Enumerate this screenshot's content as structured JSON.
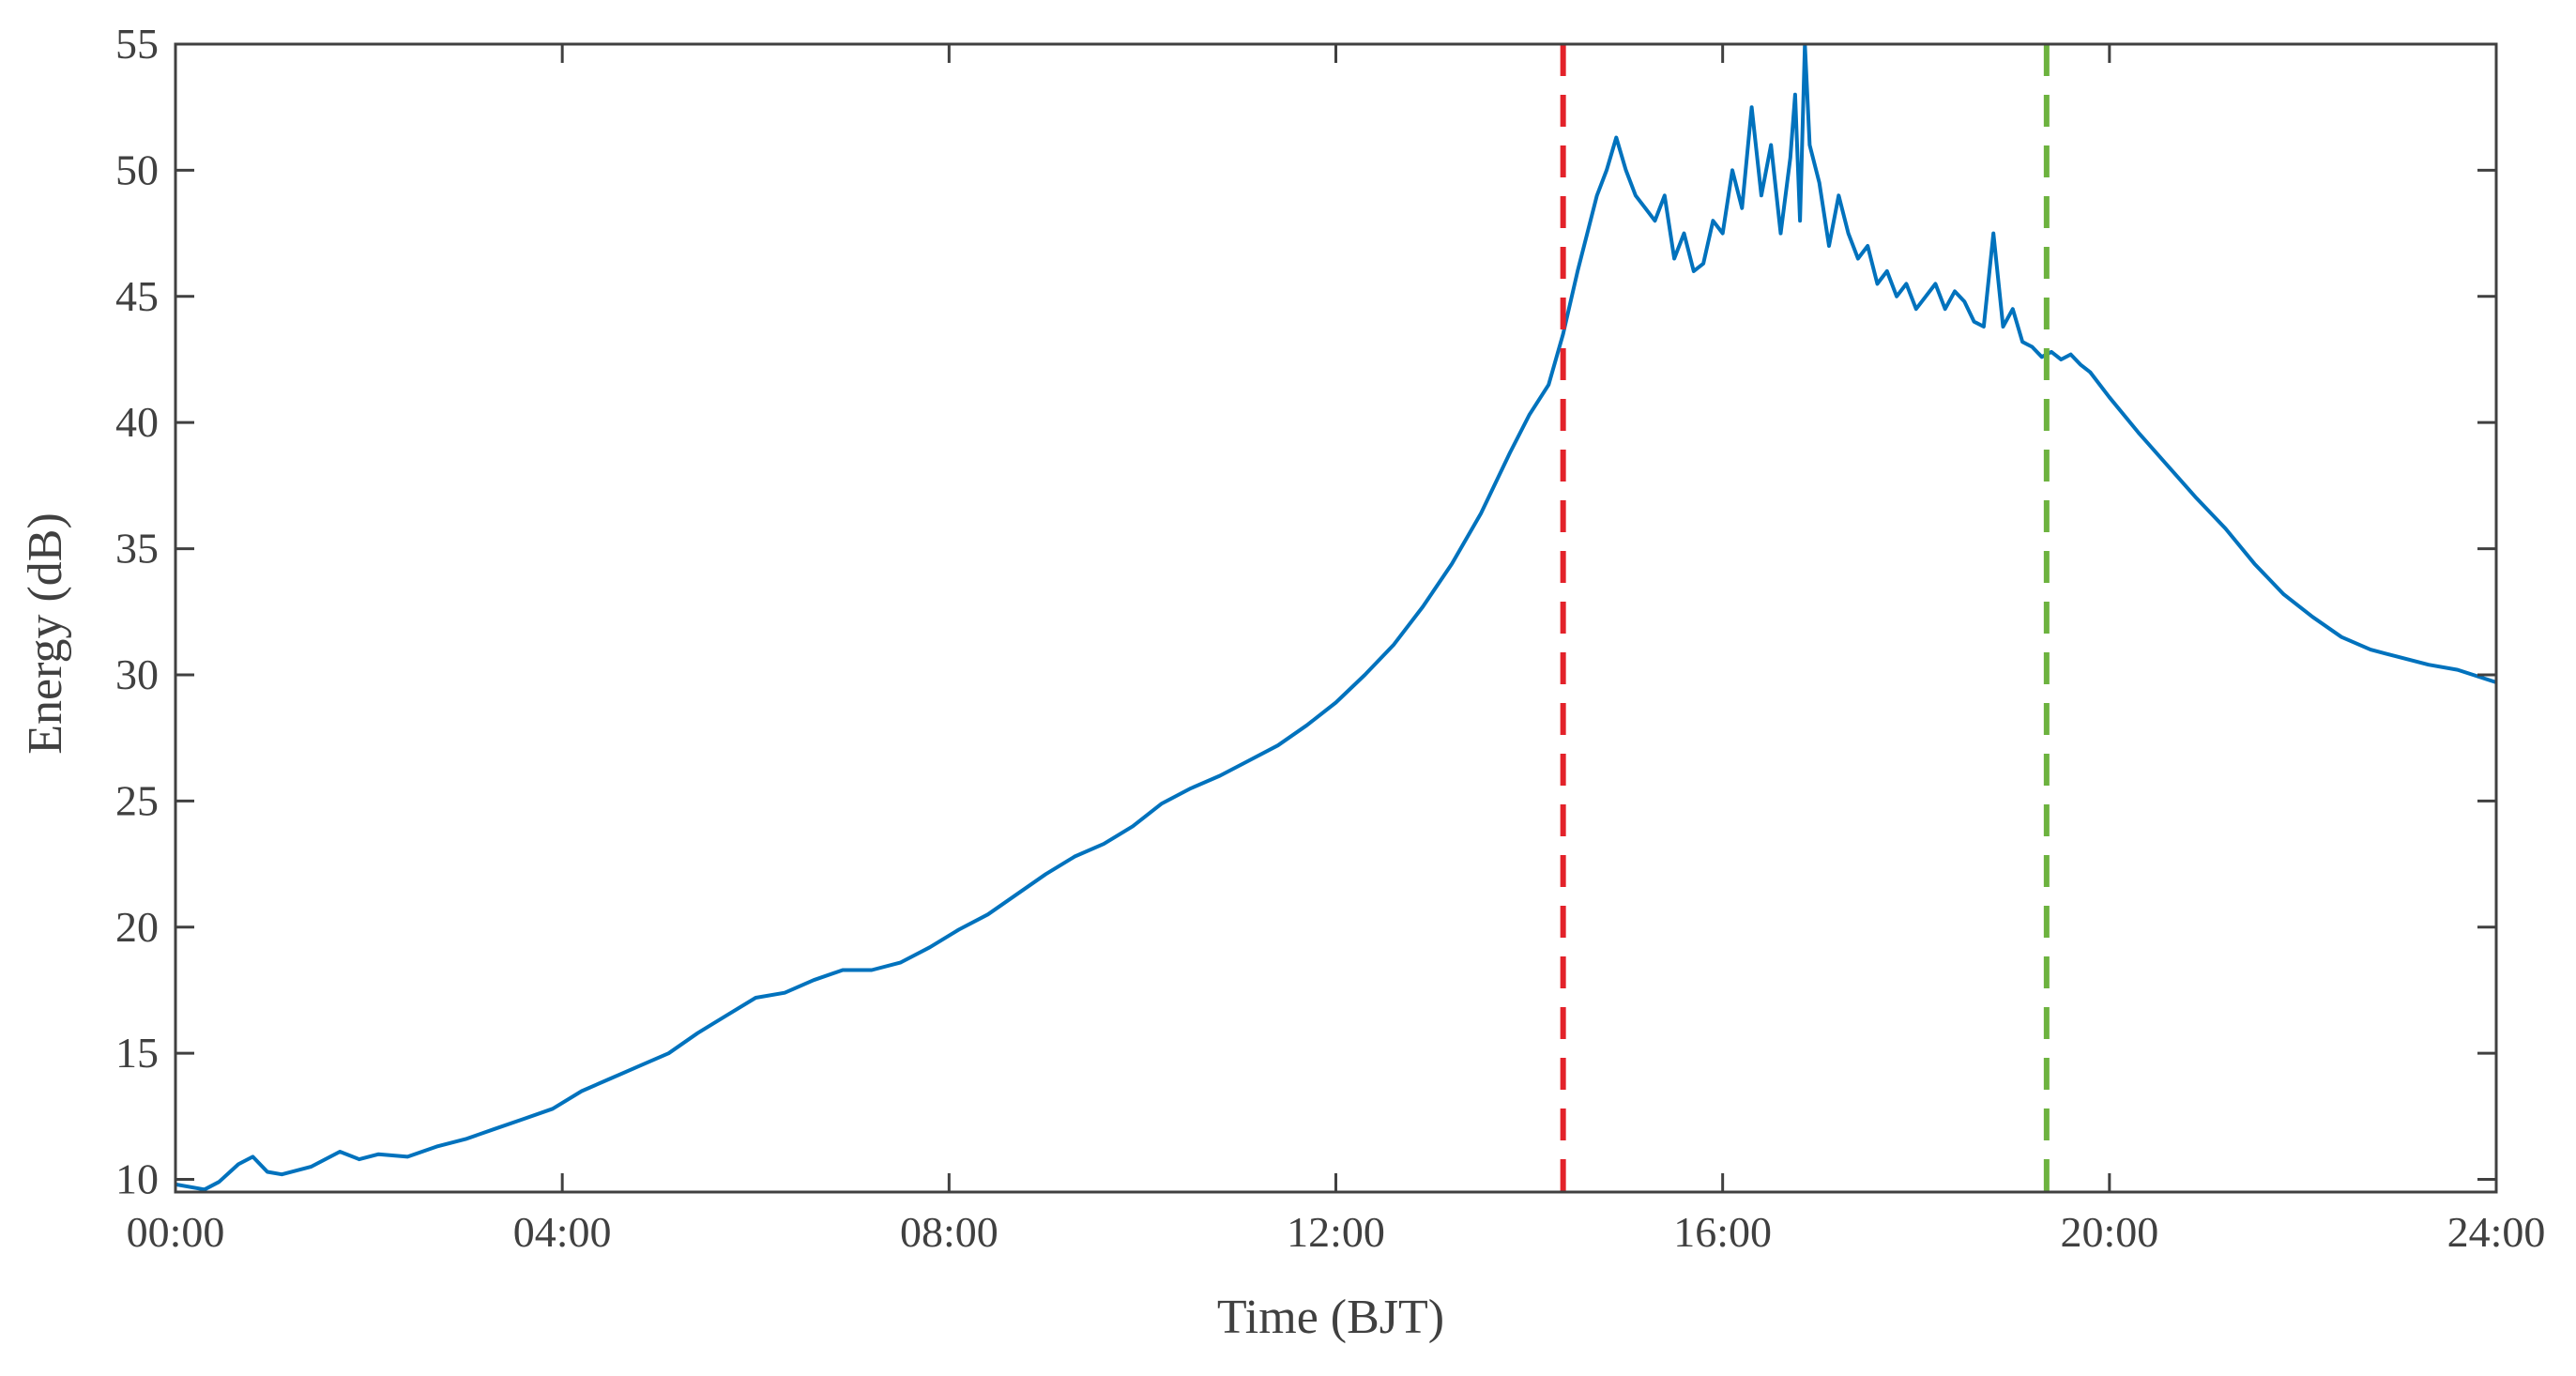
{
  "chart_data": {
    "type": "line",
    "title": "",
    "xlabel": "Time (BJT)",
    "ylabel": "Energy (dB)",
    "xlim": [
      0,
      24
    ],
    "ylim": [
      9.5,
      55
    ],
    "grid": false,
    "x_ticks": [
      {
        "value": 0,
        "label": "00:00"
      },
      {
        "value": 4,
        "label": "04:00"
      },
      {
        "value": 8,
        "label": "08:00"
      },
      {
        "value": 12,
        "label": "12:00"
      },
      {
        "value": 16,
        "label": "16:00"
      },
      {
        "value": 20,
        "label": "20:00"
      },
      {
        "value": 24,
        "label": "24:00"
      }
    ],
    "y_ticks": [
      {
        "value": 10,
        "label": "10"
      },
      {
        "value": 15,
        "label": "15"
      },
      {
        "value": 20,
        "label": "20"
      },
      {
        "value": 25,
        "label": "25"
      },
      {
        "value": 30,
        "label": "30"
      },
      {
        "value": 35,
        "label": "35"
      },
      {
        "value": 40,
        "label": "40"
      },
      {
        "value": 45,
        "label": "45"
      },
      {
        "value": 50,
        "label": "50"
      },
      {
        "value": 55,
        "label": "55"
      }
    ],
    "series": [
      {
        "color": "#0072BD",
        "x": [
          0.0,
          0.3,
          0.45,
          0.65,
          0.8,
          0.95,
          1.1,
          1.4,
          1.7,
          1.9,
          2.1,
          2.4,
          2.7,
          3.0,
          3.3,
          3.6,
          3.9,
          4.2,
          4.5,
          4.8,
          5.1,
          5.4,
          5.7,
          6.0,
          6.3,
          6.6,
          6.9,
          7.2,
          7.5,
          7.8,
          8.1,
          8.4,
          8.7,
          9.0,
          9.3,
          9.6,
          9.9,
          10.2,
          10.5,
          10.8,
          11.1,
          11.4,
          11.7,
          12.0,
          12.3,
          12.6,
          12.9,
          13.2,
          13.5,
          13.8,
          14.0,
          14.2,
          14.35,
          14.5,
          14.6,
          14.7,
          14.8,
          14.9,
          15.0,
          15.1,
          15.2,
          15.3,
          15.4,
          15.5,
          15.6,
          15.7,
          15.8,
          15.9,
          16.0,
          16.1,
          16.2,
          16.3,
          16.4,
          16.5,
          16.6,
          16.7,
          16.75,
          16.8,
          16.85,
          16.9,
          17.0,
          17.1,
          17.2,
          17.3,
          17.4,
          17.5,
          17.6,
          17.7,
          17.8,
          17.9,
          18.0,
          18.1,
          18.2,
          18.3,
          18.4,
          18.5,
          18.6,
          18.7,
          18.8,
          18.9,
          19.0,
          19.1,
          19.2,
          19.3,
          19.4,
          19.5,
          19.6,
          19.7,
          19.8,
          20.0,
          20.3,
          20.6,
          20.9,
          21.2,
          21.5,
          21.8,
          22.1,
          22.4,
          22.7,
          23.0,
          23.3,
          23.6,
          24.0
        ],
        "y": [
          9.8,
          9.6,
          9.9,
          10.6,
          10.9,
          10.3,
          10.2,
          10.5,
          11.1,
          10.8,
          11.0,
          10.9,
          11.3,
          11.6,
          12.0,
          12.4,
          12.8,
          13.5,
          14.0,
          14.5,
          15.0,
          15.8,
          16.5,
          17.2,
          17.4,
          17.9,
          18.3,
          18.3,
          18.6,
          19.2,
          19.9,
          20.5,
          21.3,
          22.1,
          22.8,
          23.3,
          24.0,
          24.9,
          25.5,
          26.0,
          26.6,
          27.2,
          28.0,
          28.9,
          30.0,
          31.2,
          32.7,
          34.4,
          36.4,
          38.8,
          40.3,
          41.5,
          43.5,
          46.0,
          47.5,
          49.0,
          50.0,
          51.3,
          50.0,
          49.0,
          48.5,
          48.0,
          49.0,
          46.5,
          47.5,
          46.0,
          46.3,
          48.0,
          47.5,
          50.0,
          48.5,
          52.5,
          49.0,
          51.0,
          47.5,
          50.5,
          53.0,
          48.0,
          55.0,
          51.0,
          49.5,
          47.0,
          49.0,
          47.5,
          46.5,
          47.0,
          45.5,
          46.0,
          45.0,
          45.5,
          44.5,
          45.0,
          45.5,
          44.5,
          45.2,
          44.8,
          44.0,
          43.8,
          47.5,
          43.8,
          44.5,
          43.2,
          43.0,
          42.6,
          42.8,
          42.5,
          42.7,
          42.3,
          42.0,
          41.0,
          39.6,
          38.3,
          37.0,
          35.8,
          34.4,
          33.2,
          32.3,
          31.5,
          31.0,
          30.7,
          30.4,
          30.2,
          29.7
        ]
      }
    ],
    "vertical_lines": [
      {
        "x": 14.35,
        "color": "#E3222A",
        "style": "dashed"
      },
      {
        "x": 19.35,
        "color": "#6DB33F",
        "style": "dashed"
      }
    ]
  }
}
